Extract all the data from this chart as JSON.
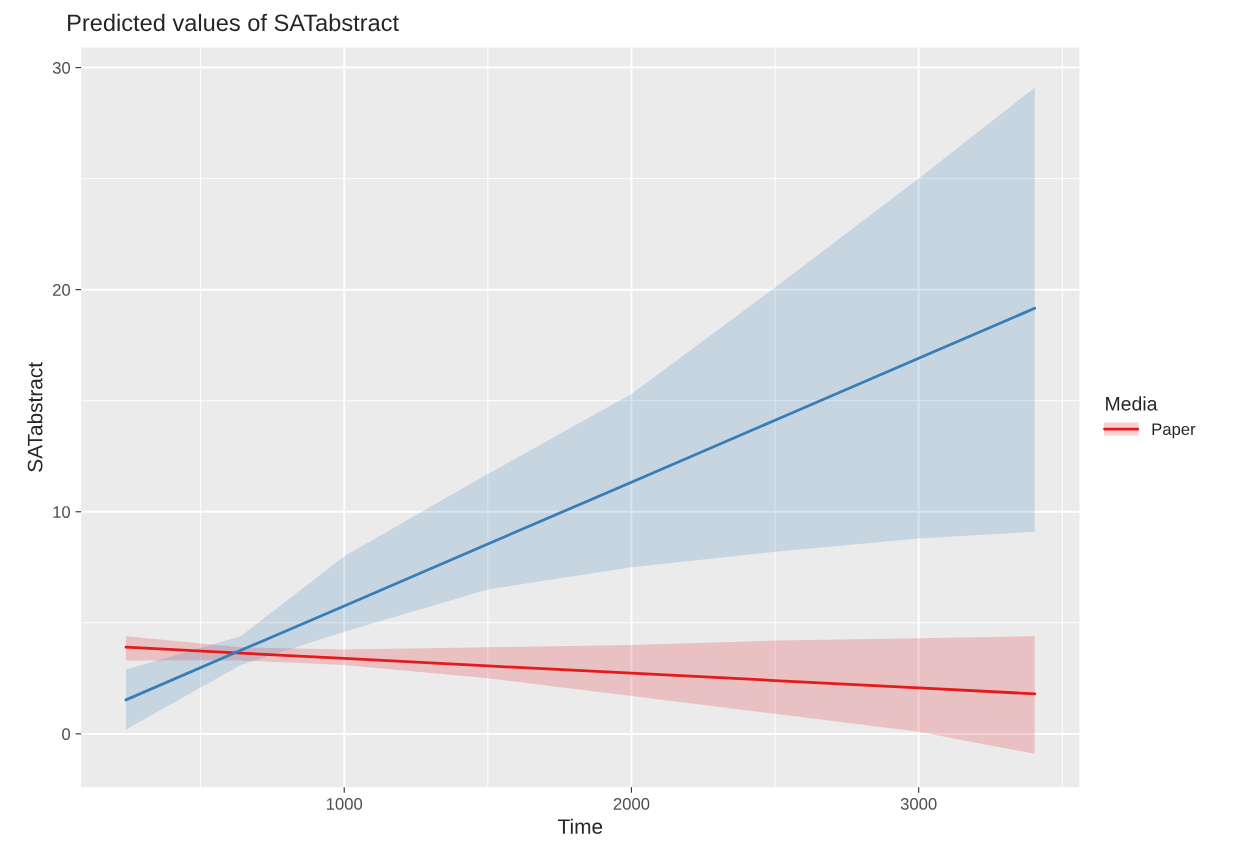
{
  "chart_data": {
    "type": "line",
    "title": "Predicted values of SATabstract",
    "xlabel": "Time",
    "ylabel": "SATabstract",
    "legend_title": "Media",
    "x": [
      240,
      640,
      1000,
      1500,
      2000,
      2500,
      3000,
      3404
    ],
    "series": [
      {
        "name": "Paper",
        "color": "#e41a1c",
        "values": [
          3.9,
          3.63,
          3.4,
          3.06,
          2.73,
          2.4,
          2.07,
          1.8
        ],
        "lower": [
          3.3,
          3.3,
          3.1,
          2.5,
          1.7,
          0.9,
          0.1,
          -0.9
        ],
        "upper": [
          4.4,
          3.9,
          3.8,
          3.9,
          4.0,
          4.2,
          4.3,
          4.4
        ]
      },
      {
        "color": "#377eb8",
        "values": [
          1.53,
          3.76,
          5.76,
          8.55,
          11.33,
          14.12,
          16.91,
          19.16
        ],
        "lower": [
          0.2,
          3.1,
          4.6,
          6.5,
          7.5,
          8.2,
          8.8,
          9.1
        ],
        "upper": [
          2.9,
          4.4,
          8.0,
          11.7,
          15.3,
          20.1,
          25.0,
          29.1
        ]
      }
    ],
    "xlim": [
      84,
      3560
    ],
    "ylim": [
      -2.4,
      30.9
    ],
    "xticks": [
      1000,
      2000,
      3000
    ],
    "yticks": [
      0,
      10,
      20,
      30
    ],
    "grid": true,
    "legend": "right"
  }
}
